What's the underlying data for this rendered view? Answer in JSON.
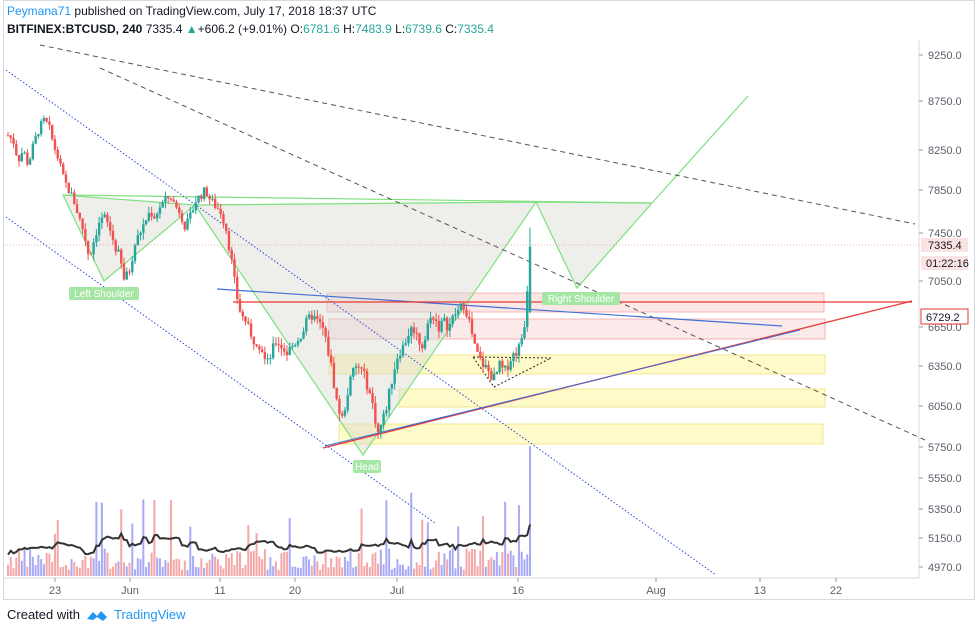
{
  "header": {
    "author": "Peymana71",
    "published_text": "published on TradingView.com, July 17, 2018 18:37 UTC",
    "symbol": "BITFINEX:BTCUSD, 240",
    "last": "7335.4",
    "change_arrow": "▲",
    "change": "+606.2 (+9.01%)",
    "o_label": "O:",
    "o_value": "6781.6",
    "h_label": "H:",
    "h_value": "7483.9",
    "l_label": "L:",
    "l_value": "6739.6",
    "c_label": "C:",
    "c_value": "7335.4"
  },
  "footer": {
    "created_with": "Created with",
    "brand": "TradingView",
    "logo_icon": "tradingview-logo-icon"
  },
  "colors": {
    "up": "#26a69a",
    "down": "#ef5350",
    "pattern_green": "#7ee07e",
    "resistance_red": "#e53935",
    "trend_blue": "#3f6fd8",
    "price_tag": "#ef9a9a"
  },
  "chart_data": {
    "type": "candlestick",
    "y_axis": {
      "ticks": [
        "9250.0",
        "8750.0",
        "8250.0",
        "7850.0",
        "7450.0",
        "7050.0",
        "6650.0",
        "6350.0",
        "6050.0",
        "5750.0",
        "5550.0",
        "5350.0",
        "5150.0",
        "4970.0"
      ],
      "price_label": "7335.4",
      "countdown_label": "01:22:16",
      "level_label": "6729.2"
    },
    "x_axis": {
      "ticks": [
        "23",
        "Jun",
        "11",
        "20",
        "Jul",
        "16",
        "Aug",
        "13",
        "22"
      ]
    },
    "annotations": {
      "left_shoulder": "Left Shoulder",
      "head": "Head",
      "right_shoulder": "Right Shoulder"
    },
    "resistance_level": 6800,
    "last_close": 7335.4,
    "ohlc_last": {
      "open": 6781.6,
      "high": 7483.9,
      "low": 6739.6,
      "close": 7335.4
    },
    "price_path": [
      8400,
      8350,
      8150,
      8250,
      8100,
      8300,
      8450,
      8550,
      8500,
      8300,
      8150,
      7950,
      7850,
      7750,
      7600,
      7450,
      7250,
      7400,
      7550,
      7600,
      7500,
      7350,
      7250,
      7050,
      7150,
      7350,
      7450,
      7550,
      7650,
      7600,
      7700,
      7750,
      7800,
      7700,
      7650,
      7500,
      7600,
      7750,
      7800,
      7850,
      7750,
      7700,
      7650,
      7500,
      7250,
      6950,
      6750,
      6700,
      6550,
      6550,
      6500,
      6350,
      6450,
      6550,
      6500,
      6450,
      6500,
      6550,
      6600,
      6700,
      6750,
      6700,
      6650,
      6500,
      6300,
      6050,
      5950,
      6150,
      6300,
      6350,
      6300,
      6200,
      6050,
      5850,
      5950,
      6100,
      6300,
      6450,
      6500,
      6600,
      6650,
      6550,
      6500,
      6700,
      6750,
      6650,
      6700,
      6650,
      6750,
      6800,
      6850,
      6700,
      6500,
      6400,
      6350,
      6300,
      6250,
      6350,
      6300,
      6400,
      6450,
      6500,
      6700,
      7335.4
    ]
  }
}
